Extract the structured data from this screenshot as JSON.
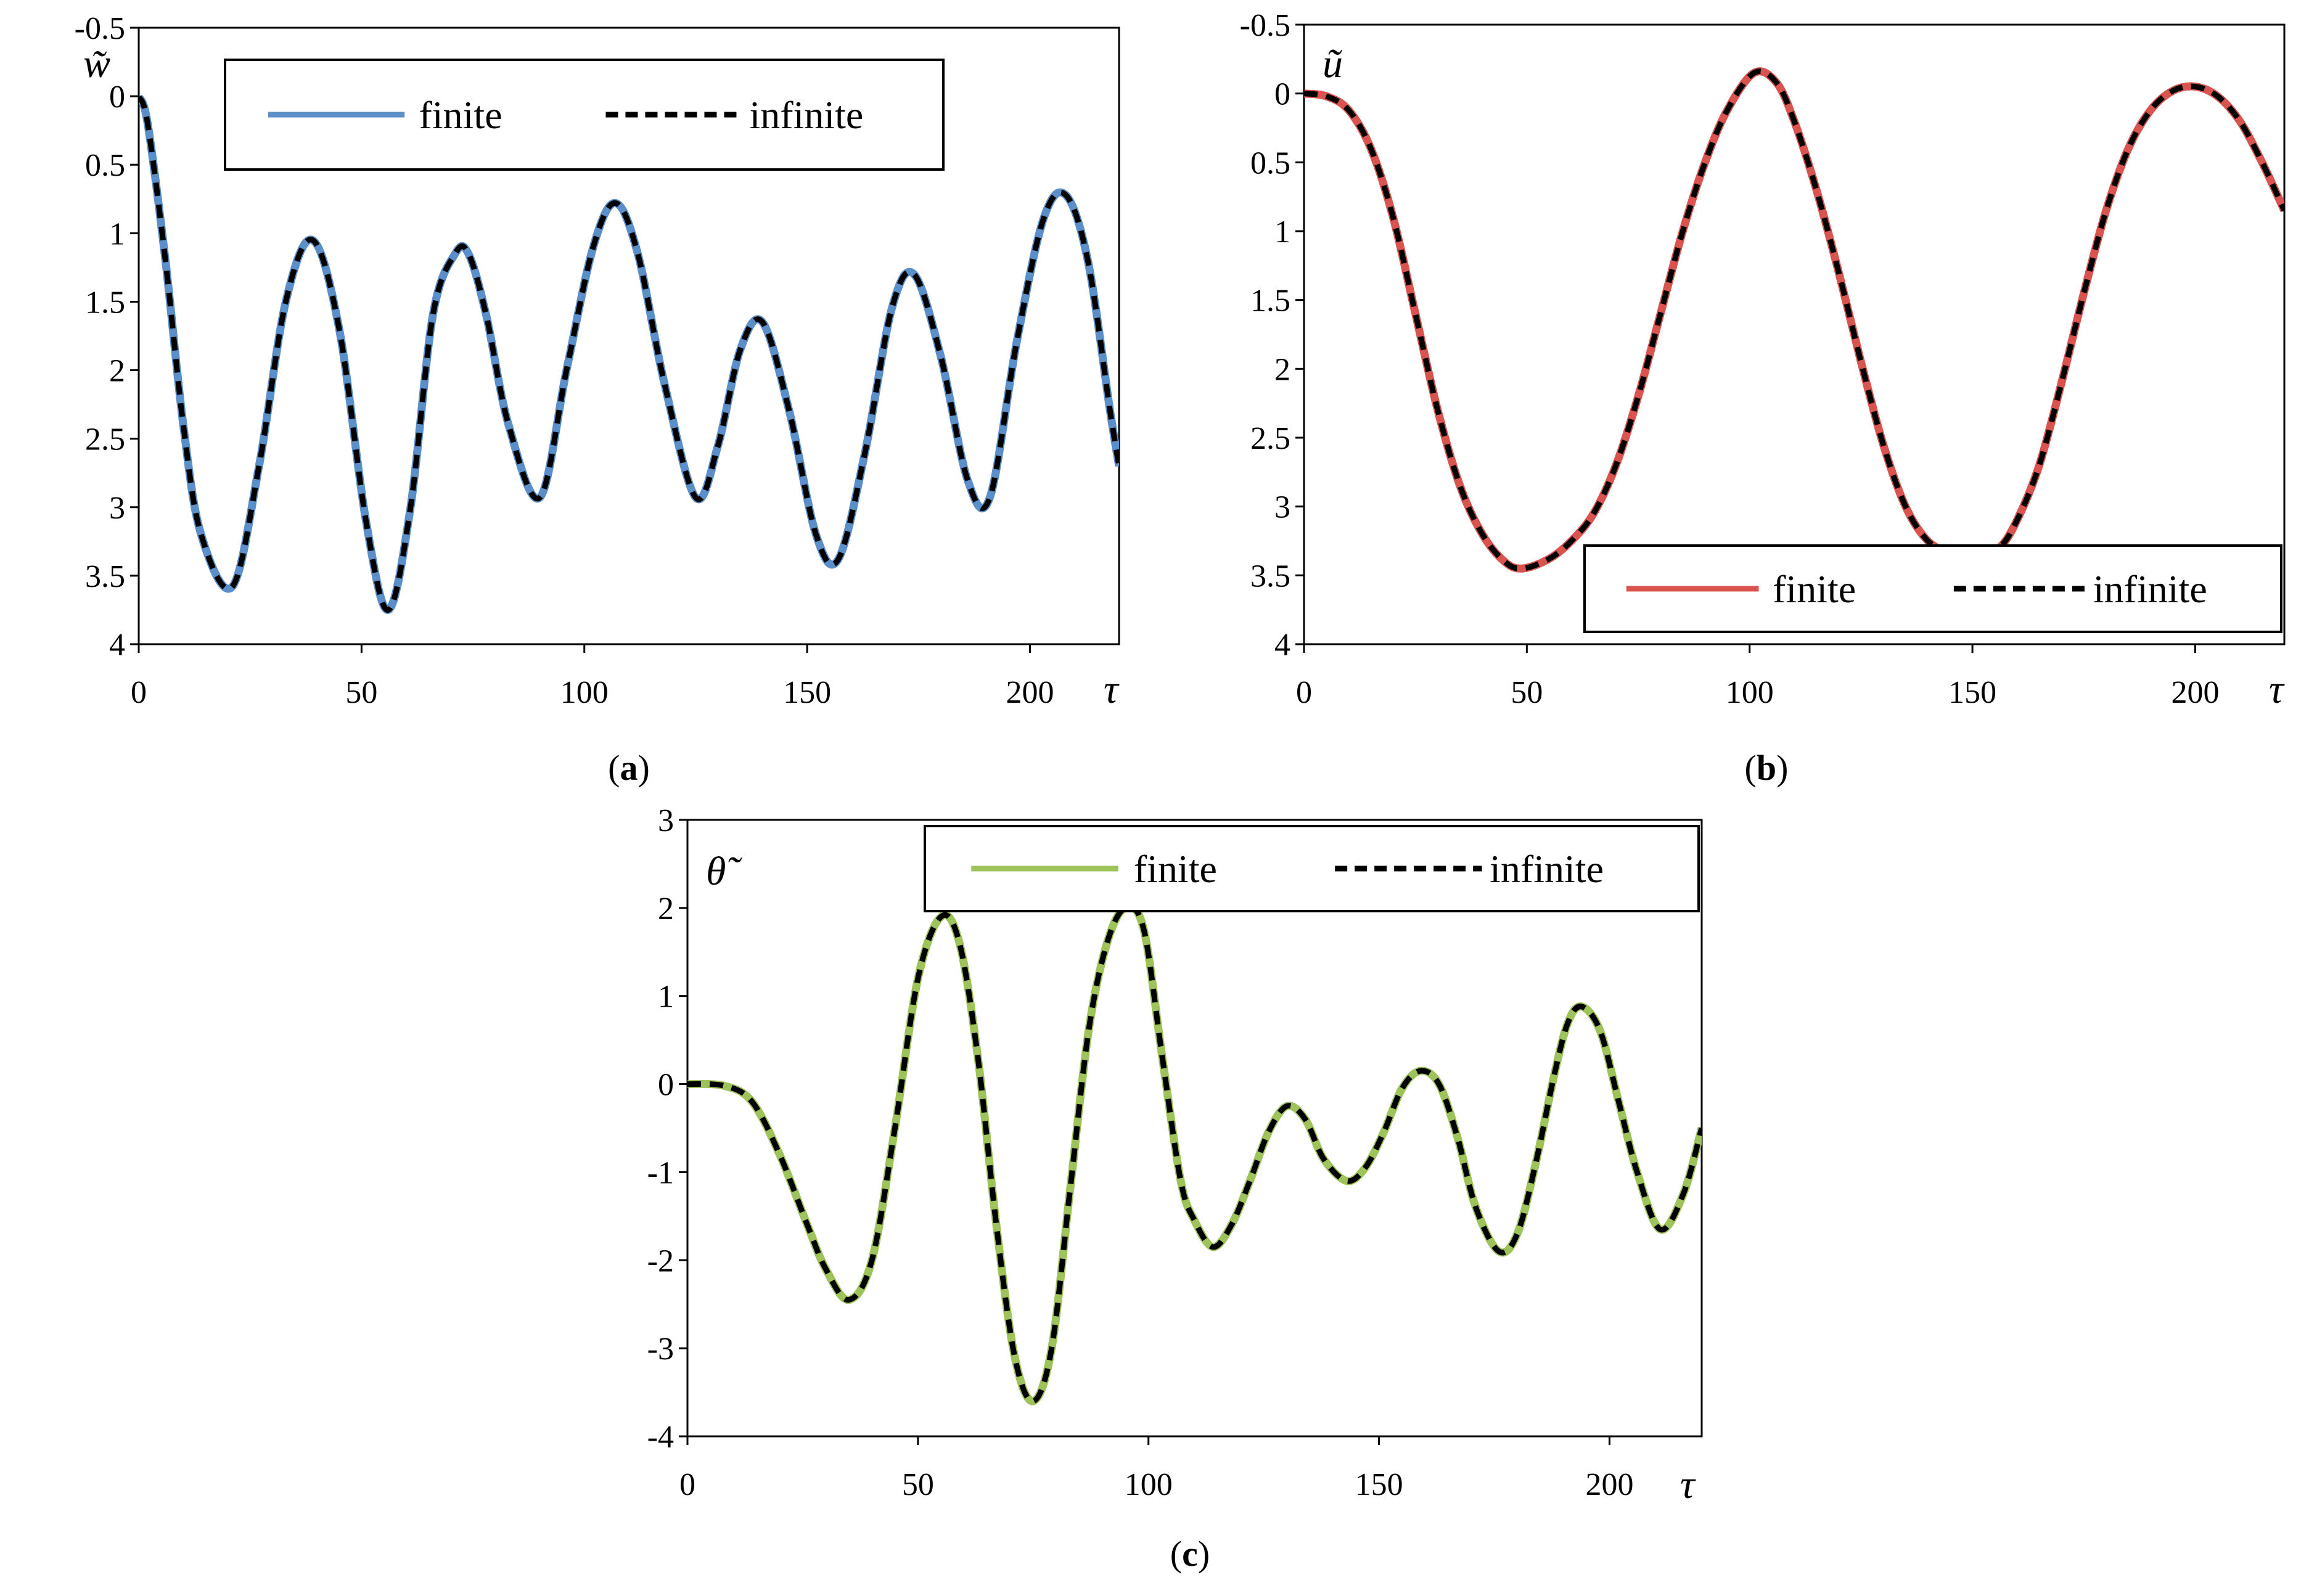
{
  "chart_data": [
    {
      "type": "line",
      "panel": "a",
      "caption_letter": "a",
      "ylabel": "w̃",
      "xlabel": "τ",
      "xlim": [
        0,
        220
      ],
      "ylim": [
        -0.5,
        4
      ],
      "y_inverted": true,
      "xticks": [
        "0",
        "50",
        "100",
        "150",
        "200"
      ],
      "yticks": [
        "-0.5",
        "0",
        "0.5",
        "1",
        "1.5",
        "2",
        "2.5",
        "3",
        "3.5",
        "4"
      ],
      "legend_position": "top",
      "grid": false,
      "series": [
        {
          "name": "finite",
          "color": "#5b8fc9",
          "style": "solid",
          "x": [
            0,
            2,
            6,
            10,
            14,
            21,
            27,
            33,
            39,
            45,
            51,
            56,
            61,
            66,
            71,
            74,
            78,
            83,
            90,
            96,
            102,
            107,
            112,
            118,
            125,
            130,
            135,
            140,
            146,
            152,
            157,
            163,
            169,
            174,
            180,
            186,
            191,
            197,
            203,
            208,
            213,
            218,
            220
          ],
          "y": [
            0,
            0.2,
            1.2,
            2.4,
            3.2,
            3.58,
            2.7,
            1.5,
            1.05,
            1.7,
            3.1,
            3.75,
            3.0,
            1.6,
            1.15,
            1.15,
            1.6,
            2.4,
            2.93,
            2.0,
            1.1,
            0.78,
            1.15,
            2.1,
            2.93,
            2.55,
            1.85,
            1.65,
            2.3,
            3.2,
            3.38,
            2.6,
            1.55,
            1.3,
            1.9,
            2.8,
            2.93,
            1.8,
            0.9,
            0.72,
            1.2,
            2.3,
            2.7
          ]
        },
        {
          "name": "infinite",
          "color": "#000000",
          "style": "dashed",
          "x": [
            0,
            2,
            6,
            10,
            14,
            21,
            27,
            33,
            39,
            45,
            51,
            56,
            61,
            66,
            71,
            74,
            78,
            83,
            90,
            96,
            102,
            107,
            112,
            118,
            125,
            130,
            135,
            140,
            146,
            152,
            157,
            163,
            169,
            174,
            180,
            186,
            191,
            197,
            203,
            208,
            213,
            218,
            220
          ],
          "y": [
            0,
            0.2,
            1.2,
            2.4,
            3.2,
            3.58,
            2.7,
            1.5,
            1.05,
            1.7,
            3.1,
            3.75,
            3.0,
            1.6,
            1.15,
            1.15,
            1.6,
            2.4,
            2.93,
            2.0,
            1.1,
            0.78,
            1.15,
            2.1,
            2.93,
            2.55,
            1.85,
            1.65,
            2.3,
            3.2,
            3.38,
            2.6,
            1.55,
            1.3,
            1.9,
            2.8,
            2.93,
            1.8,
            0.9,
            0.72,
            1.2,
            2.3,
            2.7
          ]
        }
      ]
    },
    {
      "type": "line",
      "panel": "b",
      "caption_letter": "b",
      "ylabel": "ũ",
      "xlabel": "τ",
      "xlim": [
        0,
        220
      ],
      "ylim": [
        -0.5,
        4
      ],
      "y_inverted": true,
      "xticks": [
        "0",
        "50",
        "100",
        "150",
        "200"
      ],
      "yticks": [
        "-0.5",
        "0",
        "0.5",
        "1",
        "1.5",
        "2",
        "2.5",
        "3",
        "3.5",
        "4"
      ],
      "legend_position": "bottom-right",
      "grid": false,
      "series": [
        {
          "name": "finite",
          "color": "#d9534f",
          "style": "solid",
          "x": [
            0,
            5,
            10,
            15,
            20,
            25,
            30,
            35,
            40,
            45,
            49,
            55,
            60,
            65,
            70,
            75,
            80,
            85,
            90,
            95,
            101,
            106,
            110,
            115,
            120,
            125,
            130,
            135,
            140,
            145,
            151,
            156,
            160,
            165,
            170,
            175,
            180,
            185,
            190,
            195,
            200,
            205,
            210,
            215,
            220
          ],
          "y": [
            0,
            0.02,
            0.12,
            0.4,
            0.9,
            1.6,
            2.3,
            2.85,
            3.2,
            3.4,
            3.45,
            3.38,
            3.25,
            3.05,
            2.7,
            2.2,
            1.6,
            1.0,
            0.5,
            0.12,
            -0.15,
            -0.08,
            0.2,
            0.7,
            1.3,
            1.95,
            2.55,
            3.0,
            3.25,
            3.33,
            3.35,
            3.3,
            3.1,
            2.7,
            2.1,
            1.45,
            0.85,
            0.4,
            0.12,
            -0.02,
            -0.05,
            0.02,
            0.2,
            0.5,
            0.85
          ]
        },
        {
          "name": "infinite",
          "color": "#000000",
          "style": "dashed",
          "x": [
            0,
            5,
            10,
            15,
            20,
            25,
            30,
            35,
            40,
            45,
            49,
            55,
            60,
            65,
            70,
            75,
            80,
            85,
            90,
            95,
            101,
            106,
            110,
            115,
            120,
            125,
            130,
            135,
            140,
            145,
            151,
            156,
            160,
            165,
            170,
            175,
            180,
            185,
            190,
            195,
            200,
            205,
            210,
            215,
            220
          ],
          "y": [
            0,
            0.02,
            0.12,
            0.4,
            0.9,
            1.6,
            2.3,
            2.85,
            3.2,
            3.4,
            3.45,
            3.38,
            3.25,
            3.05,
            2.7,
            2.2,
            1.6,
            1.0,
            0.5,
            0.12,
            -0.15,
            -0.08,
            0.2,
            0.7,
            1.3,
            1.95,
            2.55,
            3.0,
            3.25,
            3.33,
            3.35,
            3.3,
            3.1,
            2.7,
            2.1,
            1.45,
            0.85,
            0.4,
            0.12,
            -0.02,
            -0.05,
            0.02,
            0.2,
            0.5,
            0.85
          ]
        }
      ]
    },
    {
      "type": "line",
      "panel": "c",
      "caption_letter": "c",
      "ylabel": "θ̃",
      "xlabel": "τ",
      "xlim": [
        0,
        220
      ],
      "ylim": [
        -4,
        3
      ],
      "y_inverted": false,
      "xticks": [
        "0",
        "50",
        "100",
        "150",
        "200"
      ],
      "yticks": [
        "3",
        "2",
        "1",
        "0",
        "-1",
        "-2",
        "-3",
        "-4"
      ],
      "legend_position": "top-right",
      "grid": false,
      "series": [
        {
          "name": "finite",
          "color": "#9dc35a",
          "style": "solid",
          "x": [
            0,
            8,
            14,
            20,
            26,
            30,
            35,
            40,
            45,
            50,
            55,
            59,
            63,
            67,
            71,
            75,
            79,
            83,
            87,
            91,
            95,
            99,
            103,
            107,
            110,
            114,
            118,
            122,
            126,
            130,
            134,
            138,
            143,
            147,
            151,
            155,
            159,
            163,
            167,
            171,
            176,
            180,
            184,
            188,
            191,
            194,
            198,
            202,
            206,
            211,
            216,
            220
          ],
          "y": [
            0,
            -0.02,
            -0.2,
            -0.8,
            -1.6,
            -2.1,
            -2.45,
            -2.0,
            -0.5,
            1.2,
            1.9,
            1.6,
            0.3,
            -1.6,
            -3.1,
            -3.6,
            -3.0,
            -1.2,
            0.6,
            1.6,
            2.0,
            1.75,
            0.3,
            -1.1,
            -1.55,
            -1.85,
            -1.6,
            -1.1,
            -0.55,
            -0.25,
            -0.4,
            -0.85,
            -1.1,
            -0.95,
            -0.55,
            -0.05,
            0.15,
            0.0,
            -0.6,
            -1.4,
            -1.9,
            -1.7,
            -0.9,
            0.1,
            0.7,
            0.88,
            0.6,
            -0.2,
            -1.0,
            -1.65,
            -1.25,
            -0.5
          ]
        },
        {
          "name": "infinite",
          "color": "#000000",
          "style": "dashed",
          "x": [
            0,
            8,
            14,
            20,
            26,
            30,
            35,
            40,
            45,
            50,
            55,
            59,
            63,
            67,
            71,
            75,
            79,
            83,
            87,
            91,
            95,
            99,
            103,
            107,
            110,
            114,
            118,
            122,
            126,
            130,
            134,
            138,
            143,
            147,
            151,
            155,
            159,
            163,
            167,
            171,
            176,
            180,
            184,
            188,
            191,
            194,
            198,
            202,
            206,
            211,
            216,
            220
          ],
          "y": [
            0,
            -0.02,
            -0.2,
            -0.8,
            -1.6,
            -2.1,
            -2.45,
            -2.0,
            -0.5,
            1.2,
            1.9,
            1.6,
            0.3,
            -1.6,
            -3.1,
            -3.6,
            -3.0,
            -1.2,
            0.6,
            1.6,
            2.0,
            1.75,
            0.3,
            -1.1,
            -1.55,
            -1.85,
            -1.6,
            -1.1,
            -0.55,
            -0.25,
            -0.4,
            -0.85,
            -1.1,
            -0.95,
            -0.55,
            -0.05,
            0.15,
            0.0,
            -0.6,
            -1.4,
            -1.9,
            -1.7,
            -0.9,
            0.1,
            0.7,
            0.88,
            0.6,
            -0.2,
            -1.0,
            -1.65,
            -1.25,
            -0.5
          ]
        }
      ]
    }
  ]
}
